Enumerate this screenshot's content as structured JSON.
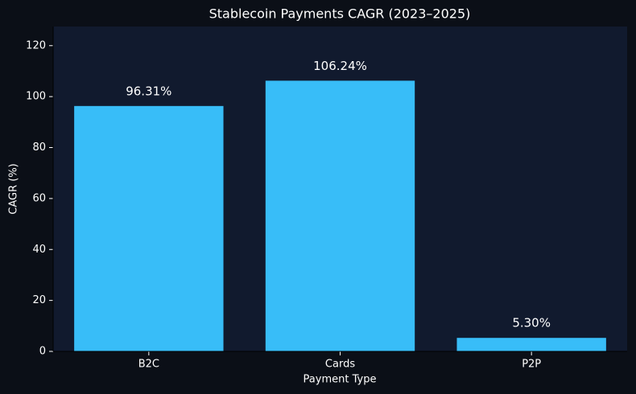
{
  "chart_data": {
    "type": "bar",
    "title": "Stablecoin Payments CAGR (2023–2025)",
    "x_label": "Payment Type",
    "y_label": "CAGR (%)",
    "categories": [
      "B2C",
      "Cards",
      "P2P"
    ],
    "values": [
      96.31,
      106.24,
      5.3
    ],
    "value_labels": [
      "96.31%",
      "106.24%",
      "5.30%"
    ],
    "color": "#38bdf8",
    "ylim": [
      0,
      127.5
    ],
    "yticks": [
      0,
      20,
      40,
      60,
      80,
      100,
      120
    ],
    "grid": false
  }
}
